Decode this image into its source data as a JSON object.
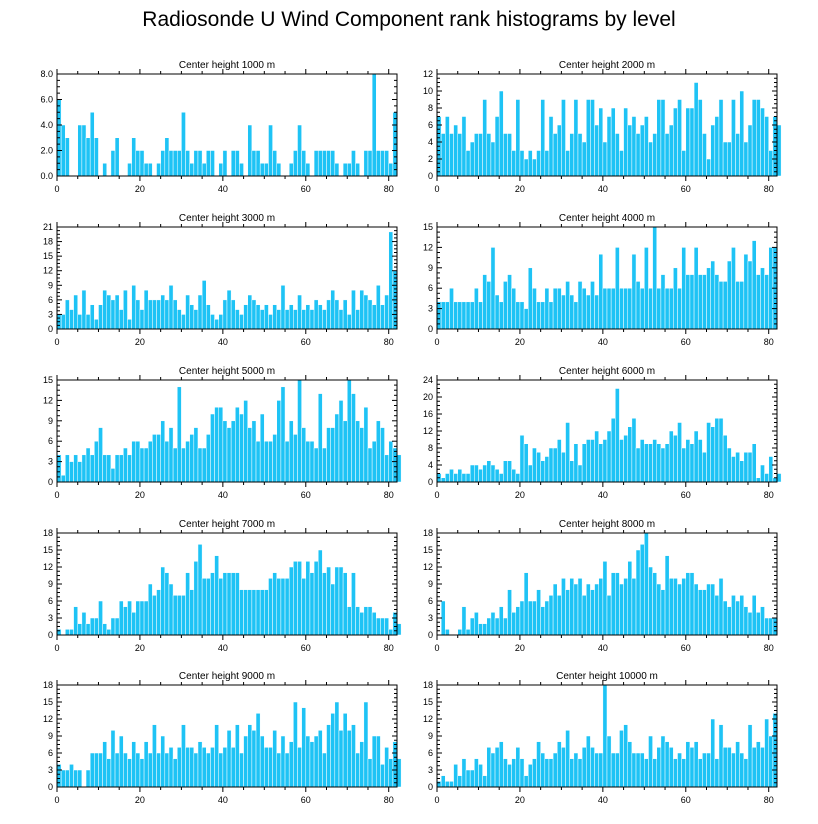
{
  "title": "Radiosonde U Wind Component rank histograms by level",
  "chart_data": [
    {
      "type": "bar",
      "title": "Center height 1000 m",
      "ylim": [
        0,
        8
      ],
      "yticks": [
        0,
        2,
        4,
        6,
        8
      ],
      "ytick_labels": [
        "0.0",
        "2.0",
        "4.0",
        "6.0",
        "8.0"
      ],
      "xlim": [
        0,
        82
      ],
      "xticks": [
        0,
        20,
        40,
        60,
        80
      ],
      "xtick_labels": [
        "0",
        "20",
        "40",
        "60",
        "80"
      ],
      "values": [
        6,
        4,
        3,
        0,
        0,
        4,
        4,
        3,
        5,
        3,
        0,
        1,
        0,
        2,
        3,
        0,
        0,
        1,
        3,
        2,
        2,
        1,
        1,
        0,
        1,
        2,
        3,
        2,
        2,
        2,
        5,
        2,
        1,
        2,
        2,
        1,
        2,
        2,
        0,
        1,
        2,
        0,
        2,
        2,
        1,
        0,
        4,
        2,
        2,
        1,
        1,
        4,
        2,
        1,
        0,
        0,
        1,
        2,
        4,
        2,
        1,
        0,
        2,
        2,
        2,
        2,
        2,
        1,
        0,
        1,
        1,
        2,
        1,
        0,
        2,
        2,
        8,
        2,
        2,
        2,
        1,
        5
      ]
    },
    {
      "type": "bar",
      "title": "Center height 2000 m",
      "ylim": [
        0,
        12
      ],
      "yticks": [
        0,
        2,
        4,
        6,
        8,
        10,
        12
      ],
      "ytick_labels": [
        "0",
        "2",
        "4",
        "6",
        "8",
        "10",
        "12"
      ],
      "xlim": [
        0,
        82
      ],
      "xticks": [
        0,
        20,
        40,
        60,
        80
      ],
      "xtick_labels": [
        "0",
        "20",
        "40",
        "60",
        "80"
      ],
      "values": [
        7,
        5,
        7,
        5,
        6,
        5,
        7,
        3,
        4,
        5,
        5,
        9,
        5,
        4,
        7,
        10,
        5,
        5,
        3,
        9,
        3,
        2,
        3,
        2,
        3,
        9,
        3,
        7,
        5,
        6,
        9,
        3,
        5,
        9,
        5,
        4,
        9,
        9,
        6,
        8,
        4,
        7,
        8,
        5,
        3,
        8,
        6,
        7,
        5,
        6,
        7,
        4,
        5,
        9,
        9,
        5,
        6,
        8,
        9,
        3,
        8,
        8,
        11,
        9,
        5,
        2,
        6,
        7,
        9,
        4,
        4,
        9,
        5,
        10,
        4,
        6,
        9,
        9,
        8,
        7,
        3,
        7,
        6
      ]
    },
    {
      "type": "bar",
      "title": "Center height 3000 m",
      "ylim": [
        0,
        21
      ],
      "yticks": [
        0,
        3,
        6,
        9,
        12,
        15,
        18,
        21
      ],
      "ytick_labels": [
        "0",
        "3",
        "6",
        "9",
        "12",
        "15",
        "18",
        "21"
      ],
      "xlim": [
        0,
        82
      ],
      "xticks": [
        0,
        20,
        40,
        60,
        80
      ],
      "xtick_labels": [
        "0",
        "20",
        "40",
        "60",
        "80"
      ],
      "values": [
        3,
        3,
        6,
        4,
        7,
        3,
        8,
        3,
        5,
        2,
        5,
        8,
        7,
        6,
        7,
        4,
        8,
        2,
        9,
        6,
        4,
        8,
        6,
        6,
        6,
        7,
        6,
        9,
        6,
        4,
        3,
        7,
        5,
        4,
        7,
        10,
        5,
        3,
        2,
        3,
        6,
        8,
        6,
        4,
        3,
        5,
        7,
        6,
        5,
        4,
        5,
        3,
        5,
        4,
        9,
        4,
        5,
        4,
        7,
        4,
        5,
        4,
        6,
        5,
        4,
        6,
        8,
        6,
        4,
        6,
        3,
        8,
        4,
        8,
        7,
        6,
        5,
        9,
        5,
        7,
        20,
        12
      ]
    },
    {
      "type": "bar",
      "title": "Center height 4000 m",
      "ylim": [
        0,
        15
      ],
      "yticks": [
        0,
        3,
        6,
        9,
        12,
        15
      ],
      "ytick_labels": [
        "0",
        "3",
        "6",
        "9",
        "12",
        "15"
      ],
      "xlim": [
        0,
        82
      ],
      "xticks": [
        0,
        20,
        40,
        60,
        80
      ],
      "xtick_labels": [
        "0",
        "20",
        "40",
        "60",
        "80"
      ],
      "values": [
        4,
        4,
        4,
        6,
        4,
        4,
        4,
        4,
        4,
        6,
        4,
        8,
        7,
        12,
        5,
        4,
        7,
        8,
        6,
        4,
        4,
        3,
        9,
        6,
        4,
        4,
        6,
        4,
        6,
        6,
        5,
        7,
        5,
        4,
        7,
        6,
        5,
        7,
        5,
        11,
        6,
        6,
        6,
        12,
        6,
        6,
        6,
        11,
        7,
        6,
        12,
        6,
        15,
        6,
        8,
        6,
        6,
        9,
        6,
        12,
        8,
        8,
        12,
        8,
        8,
        9,
        10,
        8,
        7,
        7,
        10,
        12,
        7,
        7,
        11,
        10,
        13,
        8,
        9,
        8,
        12,
        12
      ]
    },
    {
      "type": "bar",
      "title": "Center height 5000 m",
      "ylim": [
        0,
        15
      ],
      "yticks": [
        0,
        3,
        6,
        9,
        12,
        15
      ],
      "ytick_labels": [
        "0",
        "3",
        "6",
        "9",
        "12",
        "15"
      ],
      "xlim": [
        0,
        82
      ],
      "xticks": [
        0,
        20,
        40,
        60,
        80
      ],
      "xtick_labels": [
        "0",
        "20",
        "40",
        "60",
        "80"
      ],
      "values": [
        4,
        1,
        4,
        3,
        4,
        3,
        4,
        5,
        4,
        6,
        8,
        4,
        4,
        2,
        4,
        4,
        5,
        4,
        6,
        6,
        5,
        5,
        6,
        7,
        7,
        9,
        6,
        8,
        5,
        14,
        5,
        6,
        7,
        8,
        5,
        5,
        7,
        10,
        11,
        11,
        9,
        8,
        9,
        11,
        10,
        12,
        8,
        9,
        6,
        10,
        6,
        6,
        7,
        12,
        14,
        6,
        9,
        7,
        15,
        8,
        6,
        6,
        5,
        13,
        5,
        8,
        8,
        10,
        12,
        9,
        15,
        13,
        9,
        8,
        11,
        5,
        6,
        9,
        8,
        4,
        6,
        5,
        4
      ]
    },
    {
      "type": "bar",
      "title": "Center height 6000 m",
      "ylim": [
        0,
        24
      ],
      "yticks": [
        0,
        4,
        8,
        12,
        16,
        20,
        24
      ],
      "ytick_labels": [
        "0",
        "4",
        "8",
        "12",
        "16",
        "20",
        "24"
      ],
      "xlim": [
        0,
        82
      ],
      "xticks": [
        0,
        20,
        40,
        60,
        80
      ],
      "xtick_labels": [
        "0",
        "20",
        "40",
        "60",
        "80"
      ],
      "values": [
        2,
        1,
        2,
        3,
        2,
        3,
        2,
        2,
        4,
        4,
        3,
        4,
        5,
        4,
        3,
        2,
        5,
        5,
        3,
        2,
        11,
        9,
        4,
        8,
        7,
        5,
        6,
        8,
        8,
        10,
        7,
        14,
        5,
        9,
        4,
        9,
        10,
        10,
        12,
        9,
        10,
        12,
        15,
        22,
        10,
        11,
        13,
        15,
        8,
        10,
        9,
        9,
        10,
        9,
        8,
        9,
        12,
        11,
        14,
        8,
        10,
        9,
        12,
        10,
        7,
        14,
        13,
        15,
        15,
        11,
        8,
        6,
        7,
        5,
        7,
        7,
        9,
        1,
        4,
        2,
        6,
        1,
        2
      ]
    },
    {
      "type": "bar",
      "title": "Center height 7000 m",
      "ylim": [
        0,
        18
      ],
      "yticks": [
        0,
        3,
        6,
        9,
        12,
        15,
        18
      ],
      "ytick_labels": [
        "0",
        "3",
        "6",
        "9",
        "12",
        "15",
        "18"
      ],
      "xlim": [
        0,
        82
      ],
      "xticks": [
        0,
        20,
        40,
        60,
        80
      ],
      "xtick_labels": [
        "0",
        "20",
        "40",
        "60",
        "80"
      ],
      "values": [
        1,
        0,
        1,
        1,
        5,
        2,
        4,
        2,
        3,
        3,
        6,
        2,
        1,
        3,
        3,
        6,
        5,
        6,
        4,
        6,
        6,
        6,
        9,
        7,
        8,
        12,
        11,
        9,
        7,
        7,
        7,
        11,
        8,
        13,
        16,
        10,
        10,
        11,
        14,
        10,
        11,
        11,
        11,
        11,
        8,
        8,
        8,
        8,
        8,
        8,
        8,
        10,
        11,
        10,
        10,
        10,
        12,
        13,
        13,
        10,
        13,
        11,
        13,
        15,
        11,
        12,
        9,
        12,
        12,
        11,
        5,
        11,
        5,
        4,
        5,
        5,
        4,
        3,
        3,
        3,
        1,
        4,
        2
      ]
    },
    {
      "type": "bar",
      "title": "Center height 8000 m",
      "ylim": [
        0,
        18
      ],
      "yticks": [
        0,
        3,
        6,
        9,
        12,
        15,
        18
      ],
      "ytick_labels": [
        "0",
        "3",
        "6",
        "9",
        "12",
        "15",
        "18"
      ],
      "xlim": [
        0,
        82
      ],
      "xticks": [
        0,
        20,
        40,
        60,
        80
      ],
      "xtick_labels": [
        "0",
        "20",
        "40",
        "60",
        "80"
      ],
      "values": [
        0,
        6,
        1,
        0,
        0,
        1,
        5,
        1,
        3,
        4,
        2,
        2,
        3,
        4,
        3,
        5,
        3,
        8,
        4,
        5,
        6,
        11,
        6,
        6,
        8,
        5,
        6,
        7,
        9,
        7,
        10,
        8,
        10,
        9,
        10,
        7,
        9,
        8,
        9,
        10,
        13,
        7,
        11,
        11,
        9,
        10,
        13,
        10,
        15,
        16,
        18,
        12,
        11,
        9,
        8,
        14,
        10,
        10,
        9,
        10,
        11,
        11,
        9,
        8,
        8,
        9,
        9,
        7,
        10,
        6,
        5,
        7,
        6,
        7,
        5,
        4,
        7,
        4,
        5,
        3,
        3,
        3,
        0
      ]
    },
    {
      "type": "bar",
      "title": "Center height 9000 m",
      "ylim": [
        0,
        18
      ],
      "yticks": [
        0,
        3,
        6,
        9,
        12,
        15,
        18
      ],
      "ytick_labels": [
        "0",
        "3",
        "6",
        "9",
        "12",
        "15",
        "18"
      ],
      "xlim": [
        0,
        82
      ],
      "xticks": [
        0,
        20,
        40,
        60,
        80
      ],
      "xtick_labels": [
        "0",
        "20",
        "40",
        "60",
        "80"
      ],
      "values": [
        4,
        3,
        3,
        4,
        3,
        3,
        0,
        3,
        6,
        6,
        6,
        8,
        5,
        10,
        6,
        9,
        6,
        5,
        8,
        6,
        5,
        8,
        6,
        11,
        6,
        9,
        6,
        7,
        5,
        7,
        11,
        7,
        7,
        6,
        8,
        7,
        6,
        7,
        11,
        6,
        7,
        10,
        7,
        11,
        6,
        9,
        11,
        10,
        13,
        9,
        7,
        7,
        10,
        6,
        9,
        6,
        8,
        15,
        7,
        14,
        9,
        8,
        9,
        10,
        6,
        11,
        13,
        15,
        10,
        13,
        10,
        11,
        6,
        8,
        15,
        5,
        9,
        9,
        4,
        7,
        5,
        8,
        5
      ]
    },
    {
      "type": "bar",
      "title": "Center height 10000 m",
      "ylim": [
        0,
        18
      ],
      "yticks": [
        0,
        3,
        6,
        9,
        12,
        15,
        18
      ],
      "ytick_labels": [
        "0",
        "3",
        "6",
        "9",
        "12",
        "15",
        "18"
      ],
      "xlim": [
        0,
        82
      ],
      "xticks": [
        0,
        20,
        40,
        60,
        80
      ],
      "xtick_labels": [
        "0",
        "20",
        "40",
        "60",
        "80"
      ],
      "values": [
        1,
        2,
        1,
        1,
        4,
        2,
        5,
        3,
        3,
        5,
        4,
        2,
        7,
        6,
        7,
        8,
        5,
        4,
        5,
        7,
        5,
        2,
        4,
        5,
        8,
        6,
        5,
        5,
        6,
        8,
        7,
        10,
        5,
        6,
        5,
        7,
        9,
        7,
        6,
        6,
        18,
        9,
        6,
        6,
        10,
        11,
        8,
        6,
        6,
        6,
        5,
        9,
        5,
        7,
        9,
        8,
        7,
        5,
        6,
        5,
        8,
        7,
        8,
        5,
        6,
        6,
        12,
        5,
        11,
        7,
        7,
        6,
        8,
        6,
        5,
        11,
        7,
        8,
        7,
        12,
        9,
        13
      ]
    }
  ]
}
